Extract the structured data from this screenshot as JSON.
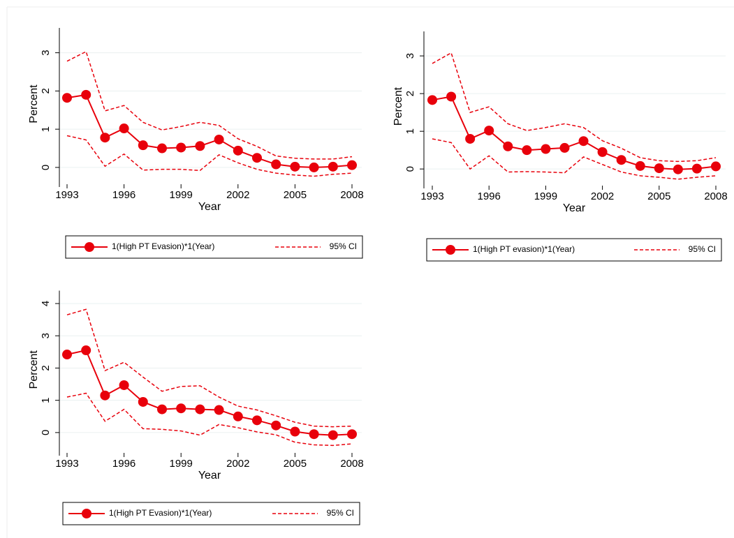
{
  "chart_data": [
    {
      "type": "line",
      "x_label": "Year",
      "y_label": "Percent",
      "x": [
        1993,
        1994,
        1995,
        1996,
        1997,
        1998,
        1999,
        2000,
        2001,
        2002,
        2003,
        2004,
        2005,
        2006,
        2007,
        2008
      ],
      "xlim": [
        1993,
        2008
      ],
      "xticks": [
        1993,
        1996,
        1999,
        2002,
        2005,
        2008
      ],
      "ylim": [
        -0.33,
        3.65
      ],
      "yticks": [
        0,
        1,
        2,
        3
      ],
      "grid": true,
      "series": [
        {
          "name": "1(High PT Evasion)*1(Year)",
          "color": "#e8000b",
          "values": [
            1.82,
            1.9,
            0.78,
            1.02,
            0.58,
            0.5,
            0.52,
            0.56,
            0.73,
            0.44,
            0.25,
            0.08,
            0.02,
            0.0,
            0.02,
            0.06
          ]
        }
      ],
      "ci": {
        "name": "95% CI",
        "color": "#e8000b",
        "upper": [
          2.78,
          3.03,
          1.48,
          1.62,
          1.18,
          0.98,
          1.07,
          1.18,
          1.1,
          0.75,
          0.55,
          0.3,
          0.24,
          0.22,
          0.22,
          0.28
        ],
        "lower": [
          0.83,
          0.72,
          0.03,
          0.35,
          -0.07,
          -0.05,
          -0.05,
          -0.08,
          0.33,
          0.12,
          -0.05,
          -0.15,
          -0.2,
          -0.23,
          -0.18,
          -0.15
        ]
      }
    },
    {
      "type": "line",
      "x_label": "Year",
      "y_label": "Percent",
      "x": [
        1993,
        1994,
        1995,
        1996,
        1997,
        1998,
        1999,
        2000,
        2001,
        2002,
        2003,
        2004,
        2005,
        2006,
        2007,
        2008
      ],
      "xlim": [
        1993,
        2008
      ],
      "xticks": [
        1993,
        1996,
        1999,
        2002,
        2005,
        2008
      ],
      "ylim": [
        -0.33,
        3.65
      ],
      "yticks": [
        0,
        1,
        2,
        3
      ],
      "grid": true,
      "series": [
        {
          "name": "1(High PT evasion)*1(Year)",
          "color": "#e8000b",
          "values": [
            1.83,
            1.92,
            0.8,
            1.02,
            0.6,
            0.5,
            0.53,
            0.56,
            0.74,
            0.45,
            0.24,
            0.08,
            0.02,
            -0.01,
            0.01,
            0.07
          ]
        }
      ],
      "ci": {
        "name": "95% CI",
        "color": "#e8000b",
        "upper": [
          2.8,
          3.08,
          1.5,
          1.65,
          1.2,
          1.02,
          1.1,
          1.2,
          1.1,
          0.75,
          0.55,
          0.3,
          0.22,
          0.2,
          0.22,
          0.3
        ],
        "lower": [
          0.8,
          0.7,
          0.0,
          0.35,
          -0.08,
          -0.07,
          -0.08,
          -0.1,
          0.32,
          0.12,
          -0.08,
          -0.18,
          -0.22,
          -0.27,
          -0.22,
          -0.18
        ]
      }
    },
    {
      "type": "line",
      "x_label": "Year",
      "y_label": "Percent",
      "x": [
        1993,
        1994,
        1995,
        1996,
        1997,
        1998,
        1999,
        2000,
        2001,
        2002,
        2003,
        2004,
        2005,
        2006,
        2007,
        2008
      ],
      "xlim": [
        1993,
        2008
      ],
      "xticks": [
        1993,
        1996,
        1999,
        2002,
        2005,
        2008
      ],
      "ylim": [
        -0.5,
        4.4
      ],
      "yticks": [
        0,
        1,
        2,
        3,
        4
      ],
      "grid": true,
      "series": [
        {
          "name": "1(High PT Evasion)*1(Year)",
          "color": "#e8000b",
          "values": [
            2.42,
            2.55,
            1.15,
            1.47,
            0.95,
            0.72,
            0.75,
            0.72,
            0.7,
            0.5,
            0.38,
            0.22,
            0.03,
            -0.05,
            -0.08,
            -0.05
          ]
        }
      ],
      "ci": {
        "name": "95% CI",
        "color": "#e8000b",
        "upper": [
          3.65,
          3.82,
          1.92,
          2.18,
          1.72,
          1.28,
          1.43,
          1.45,
          1.1,
          0.82,
          0.7,
          0.52,
          0.32,
          0.2,
          0.18,
          0.2
        ],
        "lower": [
          1.1,
          1.22,
          0.35,
          0.72,
          0.12,
          0.1,
          0.05,
          -0.08,
          0.25,
          0.15,
          0.02,
          -0.07,
          -0.3,
          -0.38,
          -0.4,
          -0.35
        ]
      }
    }
  ]
}
